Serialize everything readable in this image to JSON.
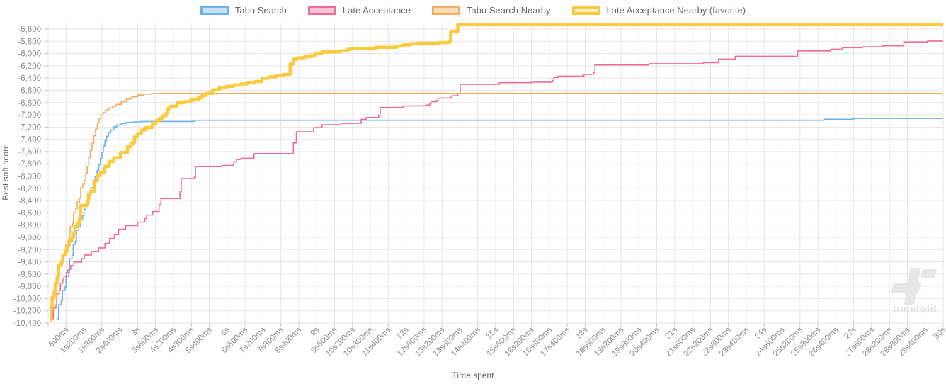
{
  "watermark": {
    "logo_icon": "timefold-logo",
    "text": "timefold"
  },
  "chart_data": {
    "type": "line",
    "step_interpolation": true,
    "title": "",
    "xlabel": "Time spent",
    "ylabel": "Best soft score",
    "legend_position": "top",
    "grid": true,
    "x_axis": {
      "seconds_per_tick": 0.6,
      "min_seconds": 0,
      "max_seconds": 30,
      "tick_labels": [
        "600ms",
        "1s200ms",
        "1s800ms",
        "2s400ms",
        "3s",
        "3s600ms",
        "4s200ms",
        "4s800ms",
        "5s400ms",
        "6s",
        "6s600ms",
        "7s200ms",
        "7s800ms",
        "8s400ms",
        "9s",
        "9s600ms",
        "10s200ms",
        "10s800ms",
        "11s400ms",
        "12s",
        "12s600ms",
        "13s200ms",
        "13s800ms",
        "14s400ms",
        "15s",
        "15s600ms",
        "16s200ms",
        "16s800ms",
        "17s400ms",
        "18s",
        "18s600ms",
        "19s200ms",
        "19s800ms",
        "20s400ms",
        "21s",
        "21s600ms",
        "22s200ms",
        "22s800ms",
        "23s400ms",
        "24s",
        "24s600ms",
        "25s200ms",
        "25s800ms",
        "26s400ms",
        "27s",
        "27s600ms",
        "28s200ms",
        "28s800ms",
        "29s400ms",
        "30s"
      ]
    },
    "y_axis": {
      "min": -10400,
      "max": -5600,
      "step": 200,
      "tick_labels": [
        "-5,600",
        "-5,800",
        "-6,000",
        "-6,200",
        "-6,400",
        "-6,600",
        "-6,800",
        "-7,000",
        "-7,200",
        "-7,400",
        "-7,600",
        "-7,800",
        "-8,000",
        "-8,200",
        "-8,400",
        "-8,600",
        "-8,800",
        "-9,000",
        "-9,200",
        "-9,400",
        "-9,600",
        "-9,800",
        "-10,000",
        "-10,200",
        "-10,400"
      ]
    },
    "colors": {
      "grid": "#e5e5e5",
      "tick_line": "#cccccc",
      "tick_text": "#8e8e8e",
      "axis_title_text": "#666666",
      "watermark": "#e6e6e6"
    },
    "series": [
      {
        "name": "Tabu Search",
        "color": "#6ab1f0",
        "legend_fill": "#c6e1f9",
        "line_width": 1.6,
        "points": [
          [
            0.3,
            -10330
          ],
          [
            0.35,
            -10100
          ],
          [
            0.44,
            -10040
          ],
          [
            0.48,
            -9870
          ],
          [
            0.56,
            -9810
          ],
          [
            0.6,
            -9640
          ],
          [
            0.69,
            -9580
          ],
          [
            0.72,
            -9350
          ],
          [
            0.8,
            -9290
          ],
          [
            0.84,
            -9115
          ],
          [
            0.91,
            -9060
          ],
          [
            0.95,
            -8885
          ],
          [
            1.03,
            -8830
          ],
          [
            1.08,
            -8710
          ],
          [
            1.15,
            -8650
          ],
          [
            1.2,
            -8540
          ],
          [
            1.27,
            -8480
          ],
          [
            1.32,
            -8365
          ],
          [
            1.39,
            -8325
          ],
          [
            1.43,
            -8190
          ],
          [
            1.51,
            -8130
          ],
          [
            1.58,
            -8010
          ],
          [
            1.64,
            -7910
          ],
          [
            1.7,
            -7810
          ],
          [
            1.75,
            -7710
          ],
          [
            1.8,
            -7610
          ],
          [
            1.85,
            -7510
          ],
          [
            1.9,
            -7425
          ],
          [
            1.96,
            -7350
          ],
          [
            2.02,
            -7295
          ],
          [
            2.1,
            -7245
          ],
          [
            2.2,
            -7195
          ],
          [
            2.3,
            -7165
          ],
          [
            2.45,
            -7140
          ],
          [
            2.62,
            -7125
          ],
          [
            2.85,
            -7115
          ],
          [
            3.1,
            -7108
          ],
          [
            4.9,
            -7088
          ],
          [
            26.0,
            -7072
          ],
          [
            27.0,
            -7058
          ]
        ]
      },
      {
        "name": "Late Acceptance",
        "color": "#f06a94",
        "legend_fill": "#f9c6d5",
        "line_width": 1.6,
        "points": [
          [
            0.12,
            -10330
          ],
          [
            0.17,
            -10155
          ],
          [
            0.26,
            -10100
          ],
          [
            0.29,
            -9925
          ],
          [
            0.37,
            -9868
          ],
          [
            0.41,
            -9752
          ],
          [
            0.49,
            -9694
          ],
          [
            0.53,
            -9636
          ],
          [
            0.61,
            -9578
          ],
          [
            0.66,
            -9520
          ],
          [
            0.76,
            -9462
          ],
          [
            0.86,
            -9404
          ],
          [
            1.12,
            -9347
          ],
          [
            1.21,
            -9289
          ],
          [
            1.45,
            -9231
          ],
          [
            1.69,
            -9173
          ],
          [
            1.9,
            -9100
          ],
          [
            2.06,
            -9020
          ],
          [
            2.22,
            -8950
          ],
          [
            2.36,
            -8868
          ],
          [
            2.6,
            -8810
          ],
          [
            3.0,
            -8752
          ],
          [
            3.24,
            -8694
          ],
          [
            3.3,
            -8636
          ],
          [
            3.5,
            -8578
          ],
          [
            3.72,
            -8462
          ],
          [
            3.78,
            -8367
          ],
          [
            4.42,
            -8250
          ],
          [
            4.46,
            -8040
          ],
          [
            4.9,
            -8020
          ],
          [
            4.94,
            -7846
          ],
          [
            5.82,
            -7826
          ],
          [
            6.22,
            -7768
          ],
          [
            6.31,
            -7730
          ],
          [
            6.46,
            -7710
          ],
          [
            6.9,
            -7633
          ],
          [
            8.22,
            -7460
          ],
          [
            8.32,
            -7278
          ],
          [
            8.9,
            -7210
          ],
          [
            9.18,
            -7162
          ],
          [
            9.82,
            -7140
          ],
          [
            10.49,
            -7074
          ],
          [
            10.66,
            -7044
          ],
          [
            11.08,
            -7010
          ],
          [
            11.13,
            -6880
          ],
          [
            11.9,
            -6854
          ],
          [
            12.66,
            -6840
          ],
          [
            12.79,
            -6822
          ],
          [
            12.83,
            -6784
          ],
          [
            13.02,
            -6764
          ],
          [
            13.07,
            -6726
          ],
          [
            13.49,
            -6714
          ],
          [
            13.54,
            -6688
          ],
          [
            13.73,
            -6650
          ],
          [
            13.81,
            -6502
          ],
          [
            15.12,
            -6476
          ],
          [
            16.22,
            -6466
          ],
          [
            16.9,
            -6438
          ],
          [
            16.95,
            -6390
          ],
          [
            17.09,
            -6368
          ],
          [
            17.96,
            -6340
          ],
          [
            18.28,
            -6314
          ],
          [
            18.33,
            -6186
          ],
          [
            20.14,
            -6166
          ],
          [
            21.95,
            -6148
          ],
          [
            22.47,
            -6090
          ],
          [
            23.03,
            -6044
          ],
          [
            25.12,
            -5956
          ],
          [
            26.23,
            -5928
          ],
          [
            26.62,
            -5904
          ],
          [
            27.29,
            -5890
          ],
          [
            27.97,
            -5874
          ],
          [
            28.68,
            -5812
          ],
          [
            29.47,
            -5796
          ]
        ]
      },
      {
        "name": "Tabu Search Nearby",
        "color": "#f8ab5e",
        "legend_fill": "#fcdfb9",
        "line_width": 1.6,
        "points": [
          [
            0.08,
            -10310
          ],
          [
            0.12,
            -10100
          ],
          [
            0.15,
            -10040
          ],
          [
            0.18,
            -9868
          ],
          [
            0.24,
            -9810
          ],
          [
            0.27,
            -9636
          ],
          [
            0.33,
            -9578
          ],
          [
            0.36,
            -9462
          ],
          [
            0.44,
            -9404
          ],
          [
            0.47,
            -9290
          ],
          [
            0.55,
            -9231
          ],
          [
            0.59,
            -9115
          ],
          [
            0.67,
            -9057
          ],
          [
            0.71,
            -8940
          ],
          [
            0.74,
            -8826
          ],
          [
            0.82,
            -8768
          ],
          [
            0.85,
            -8594
          ],
          [
            0.93,
            -8536
          ],
          [
            0.97,
            -8420
          ],
          [
            1.05,
            -8363
          ],
          [
            1.09,
            -8190
          ],
          [
            1.16,
            -8132
          ],
          [
            1.21,
            -8070
          ],
          [
            1.26,
            -7950
          ],
          [
            1.31,
            -7840
          ],
          [
            1.36,
            -7700
          ],
          [
            1.41,
            -7580
          ],
          [
            1.47,
            -7460
          ],
          [
            1.53,
            -7340
          ],
          [
            1.59,
            -7230
          ],
          [
            1.65,
            -7130
          ],
          [
            1.71,
            -7060
          ],
          [
            1.77,
            -7000
          ],
          [
            1.84,
            -6960
          ],
          [
            1.93,
            -6922
          ],
          [
            2.03,
            -6888
          ],
          [
            2.15,
            -6858
          ],
          [
            2.28,
            -6830
          ],
          [
            2.45,
            -6786
          ],
          [
            2.62,
            -6742
          ],
          [
            2.8,
            -6706
          ],
          [
            3.0,
            -6678
          ],
          [
            3.2,
            -6662
          ],
          [
            3.45,
            -6652
          ],
          [
            3.7,
            -6650
          ]
        ]
      },
      {
        "name": "Late Acceptance Nearby (favorite)",
        "color": "#fbca3e",
        "legend_fill": "#fdefc0",
        "line_width": 4.5,
        "points": [
          [
            0.08,
            -10350
          ],
          [
            0.1,
            -10150
          ],
          [
            0.13,
            -9980
          ],
          [
            0.2,
            -9920
          ],
          [
            0.24,
            -9750
          ],
          [
            0.3,
            -9640
          ],
          [
            0.35,
            -9460
          ],
          [
            0.44,
            -9400
          ],
          [
            0.49,
            -9290
          ],
          [
            0.57,
            -9230
          ],
          [
            0.64,
            -9130
          ],
          [
            0.7,
            -9060
          ],
          [
            0.79,
            -9000
          ],
          [
            0.85,
            -8940
          ],
          [
            0.9,
            -8830
          ],
          [
            0.97,
            -8770
          ],
          [
            1.04,
            -8710
          ],
          [
            1.09,
            -8480
          ],
          [
            1.3,
            -8420
          ],
          [
            1.35,
            -8300
          ],
          [
            1.41,
            -8250
          ],
          [
            1.54,
            -8080
          ],
          [
            1.65,
            -7990
          ],
          [
            1.75,
            -7940
          ],
          [
            1.9,
            -7840
          ],
          [
            2.05,
            -7760
          ],
          [
            2.2,
            -7700
          ],
          [
            2.42,
            -7615
          ],
          [
            2.66,
            -7520
          ],
          [
            2.78,
            -7460
          ],
          [
            2.89,
            -7360
          ],
          [
            3.01,
            -7305
          ],
          [
            3.13,
            -7248
          ],
          [
            3.25,
            -7208
          ],
          [
            3.49,
            -7150
          ],
          [
            3.61,
            -7092
          ],
          [
            3.73,
            -7055
          ],
          [
            3.84,
            -7015
          ],
          [
            3.96,
            -6976
          ],
          [
            4.0,
            -6900
          ],
          [
            4.08,
            -6860
          ],
          [
            4.32,
            -6805
          ],
          [
            4.56,
            -6785
          ],
          [
            4.79,
            -6745
          ],
          [
            5.03,
            -6725
          ],
          [
            5.15,
            -6688
          ],
          [
            5.27,
            -6650
          ],
          [
            5.51,
            -6592
          ],
          [
            5.74,
            -6552
          ],
          [
            5.98,
            -6533
          ],
          [
            6.22,
            -6514
          ],
          [
            6.46,
            -6495
          ],
          [
            6.69,
            -6476
          ],
          [
            6.93,
            -6456
          ],
          [
            7.17,
            -6400
          ],
          [
            7.4,
            -6380
          ],
          [
            7.64,
            -6360
          ],
          [
            7.88,
            -6340
          ],
          [
            8.11,
            -6170
          ],
          [
            8.23,
            -6090
          ],
          [
            8.35,
            -6070
          ],
          [
            8.59,
            -6050
          ],
          [
            8.83,
            -6032
          ],
          [
            8.95,
            -5994
          ],
          [
            9.18,
            -5974
          ],
          [
            9.78,
            -5955
          ],
          [
            10.01,
            -5936
          ],
          [
            10.13,
            -5916
          ],
          [
            10.96,
            -5897
          ],
          [
            11.68,
            -5878
          ],
          [
            11.91,
            -5858
          ],
          [
            12.15,
            -5840
          ],
          [
            12.39,
            -5831
          ],
          [
            13.1,
            -5820
          ],
          [
            13.45,
            -5800
          ],
          [
            13.49,
            -5646
          ],
          [
            13.73,
            -5530
          ]
        ]
      }
    ]
  }
}
